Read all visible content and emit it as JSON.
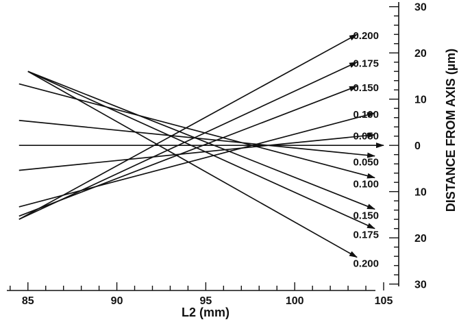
{
  "chart_data": {
    "type": "line",
    "xlabel": "L2 (mm)",
    "ylabel": "DISTANCE FROM AXIS (µm)",
    "xlim": [
      84.2,
      105
    ],
    "ylim": [
      -30.5,
      31
    ],
    "x_ticks": [
      85,
      90,
      95,
      100,
      105
    ],
    "y_ticks": [
      30,
      20,
      10,
      0,
      -10,
      -20,
      -30
    ],
    "y_tick_labels": [
      "30",
      "20",
      "10",
      "0",
      "10",
      "20",
      "30"
    ],
    "grid": false,
    "legend": "none",
    "color": "#111111",
    "series": [
      {
        "label": "0.200",
        "x": [
          84.5,
          103.5
        ],
        "y": [
          -16.0,
          24.0
        ]
      },
      {
        "label": "0.175",
        "x": [
          84.5,
          103.5
        ],
        "y": [
          -16.0,
          18.0
        ]
      },
      {
        "label": "0.150",
        "x": [
          84.5,
          103.5
        ],
        "y": [
          -15.3,
          12.8
        ]
      },
      {
        "label": "0.100",
        "x": [
          84.5,
          104.5
        ],
        "y": [
          -13.3,
          7.0
        ]
      },
      {
        "label": "0.050",
        "x": [
          84.5,
          104.5
        ],
        "y": [
          -5.4,
          2.3
        ]
      },
      {
        "label": "",
        "x": [
          84.5,
          105.0
        ],
        "y": [
          0.0,
          0.0
        ]
      },
      {
        "label": "0.050",
        "x": [
          84.5,
          104.5
        ],
        "y": [
          5.4,
          -2.3
        ]
      },
      {
        "label": "0.100",
        "x": [
          84.5,
          104.5
        ],
        "y": [
          13.3,
          -7.0
        ]
      },
      {
        "label": "0.150",
        "x": [
          85.0,
          104.5
        ],
        "y": [
          16.0,
          -13.8
        ]
      },
      {
        "label": "0.175",
        "x": [
          85.0,
          104.5
        ],
        "y": [
          16.0,
          -18.0
        ]
      },
      {
        "label": "0.200",
        "x": [
          85.0,
          103.5
        ],
        "y": [
          16.0,
          -24.2
        ]
      }
    ]
  }
}
